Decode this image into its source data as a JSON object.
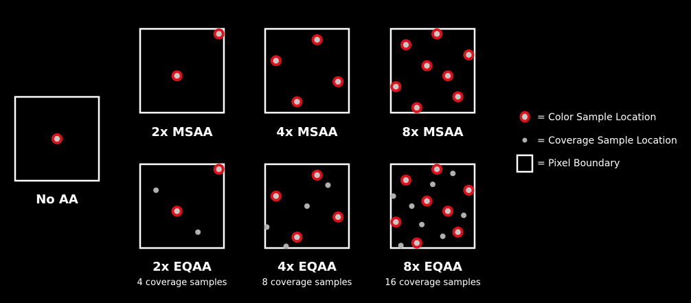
{
  "colors": {
    "background": "#000000",
    "box_stroke": "#ffffff",
    "color_sample_outer": "#e0101a",
    "color_sample_inner": "#c8c8c8",
    "coverage_sample": "#b0b0b0",
    "text": "#ffffff"
  },
  "panels": [
    {
      "title": "No AA",
      "subtitle": "",
      "color_samples": [
        [
          0.5,
          0.5
        ]
      ],
      "coverage_samples": []
    },
    {
      "title": "2x MSAA",
      "subtitle": "",
      "color_samples": [
        [
          0.94,
          0.06
        ],
        [
          0.44,
          0.56
        ]
      ],
      "coverage_samples": []
    },
    {
      "title": "4x MSAA",
      "subtitle": "",
      "color_samples": [
        [
          0.62,
          0.13
        ],
        [
          0.13,
          0.38
        ],
        [
          0.87,
          0.63
        ],
        [
          0.38,
          0.87
        ]
      ],
      "coverage_samples": []
    },
    {
      "title": "8x MSAA",
      "subtitle": "",
      "color_samples": [
        [
          0.55,
          0.06
        ],
        [
          0.18,
          0.19
        ],
        [
          0.93,
          0.31
        ],
        [
          0.43,
          0.44
        ],
        [
          0.68,
          0.56
        ],
        [
          0.06,
          0.69
        ],
        [
          0.8,
          0.81
        ],
        [
          0.31,
          0.94
        ]
      ],
      "coverage_samples": []
    },
    {
      "title": "2x EQAA",
      "subtitle": "4 coverage samples",
      "color_samples": [
        [
          0.94,
          0.06
        ],
        [
          0.44,
          0.56
        ]
      ],
      "coverage_samples": [
        [
          0.19,
          0.31
        ],
        [
          0.69,
          0.81
        ]
      ]
    },
    {
      "title": "4x EQAA",
      "subtitle": "8 coverage samples",
      "color_samples": [
        [
          0.62,
          0.13
        ],
        [
          0.13,
          0.38
        ],
        [
          0.87,
          0.63
        ],
        [
          0.38,
          0.87
        ]
      ],
      "coverage_samples": [
        [
          0.75,
          0.25
        ],
        [
          0.5,
          0.5
        ],
        [
          0.02,
          0.75
        ],
        [
          0.25,
          0.98
        ]
      ]
    },
    {
      "title": "8x EQAA",
      "subtitle": "16 coverage samples",
      "color_samples": [
        [
          0.55,
          0.06
        ],
        [
          0.18,
          0.19
        ],
        [
          0.93,
          0.31
        ],
        [
          0.43,
          0.44
        ],
        [
          0.68,
          0.56
        ],
        [
          0.06,
          0.69
        ],
        [
          0.8,
          0.81
        ],
        [
          0.31,
          0.94
        ]
      ],
      "coverage_samples": [
        [
          0.74,
          0.11
        ],
        [
          0.5,
          0.24
        ],
        [
          0.03,
          0.38
        ],
        [
          0.25,
          0.5
        ],
        [
          0.87,
          0.61
        ],
        [
          0.37,
          0.72
        ],
        [
          0.62,
          0.86
        ],
        [
          0.12,
          0.97
        ]
      ]
    }
  ],
  "legend": {
    "color_sample_label": "= Color Sample Location",
    "coverage_sample_label": "= Coverage Sample Location",
    "pixel_boundary_label": "= Pixel Boundary"
  }
}
